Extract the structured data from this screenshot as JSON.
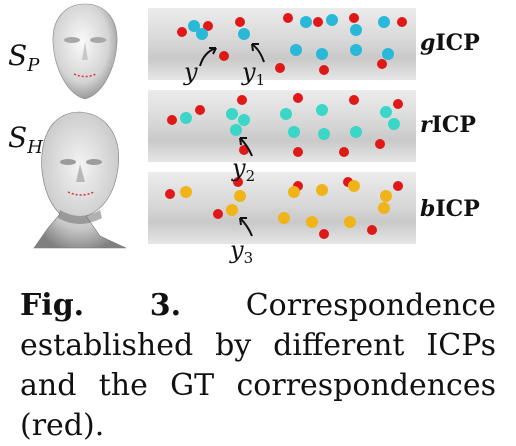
{
  "labels": {
    "sp": {
      "base": "S",
      "sub": "P"
    },
    "sh": {
      "base": "S",
      "sub": "H"
    },
    "y": "y",
    "y1": {
      "base": "y",
      "sub": "1"
    },
    "y2": {
      "base": "y",
      "sub": "2"
    },
    "y3": {
      "base": "y",
      "sub": "3"
    }
  },
  "methods": [
    {
      "prefix": "g",
      "suffix": "ICP"
    },
    {
      "prefix": "r",
      "suffix": "ICP"
    },
    {
      "prefix": "b",
      "suffix": "ICP"
    }
  ],
  "caption": {
    "fig_label": "Fig. 3.",
    "text": "Correspondence established by different ICPs and the GT correspondences (red)."
  },
  "colors": {
    "gt": "#e01818",
    "gicp": "#29b8d8",
    "ricp": "#3ad6c8",
    "bicp": "#f0b418"
  },
  "icons": [
    "face-mesh-image",
    "head-scan-image",
    "arrow-icon"
  ]
}
